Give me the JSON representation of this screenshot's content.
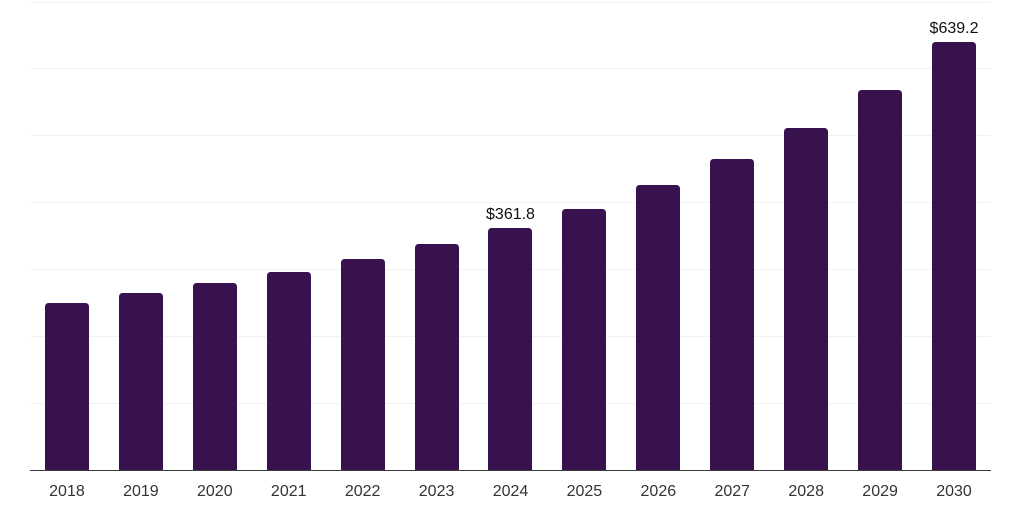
{
  "chart_data": {
    "type": "bar",
    "title": "",
    "xlabel": "",
    "ylabel": "",
    "categories": [
      "2018",
      "2019",
      "2020",
      "2021",
      "2022",
      "2023",
      "2024",
      "2025",
      "2026",
      "2027",
      "2028",
      "2029",
      "2030"
    ],
    "values": [
      249.5,
      264.6,
      280.1,
      296.6,
      315.5,
      337.0,
      361.8,
      390.5,
      425.2,
      464.1,
      511.4,
      568.2,
      639.2
    ],
    "data_labels": [
      "",
      "",
      "",
      "",
      "",
      "",
      "$361.8",
      "",
      "",
      "",
      "",
      "",
      "$639.2"
    ],
    "ylim": [
      0,
      700
    ],
    "gridline_interval": 100,
    "grid": true,
    "legend": "none",
    "y_axis_tick_labels_visible": false,
    "currency_prefix": "$"
  },
  "style": {
    "bar_color": "#38124E",
    "gridline_color": "#F2F2F2",
    "axis_line_color": "#3D3D3D",
    "data_label_color": "#111111",
    "tick_label_color": "#333333",
    "background_color": "#FFFFFF"
  }
}
